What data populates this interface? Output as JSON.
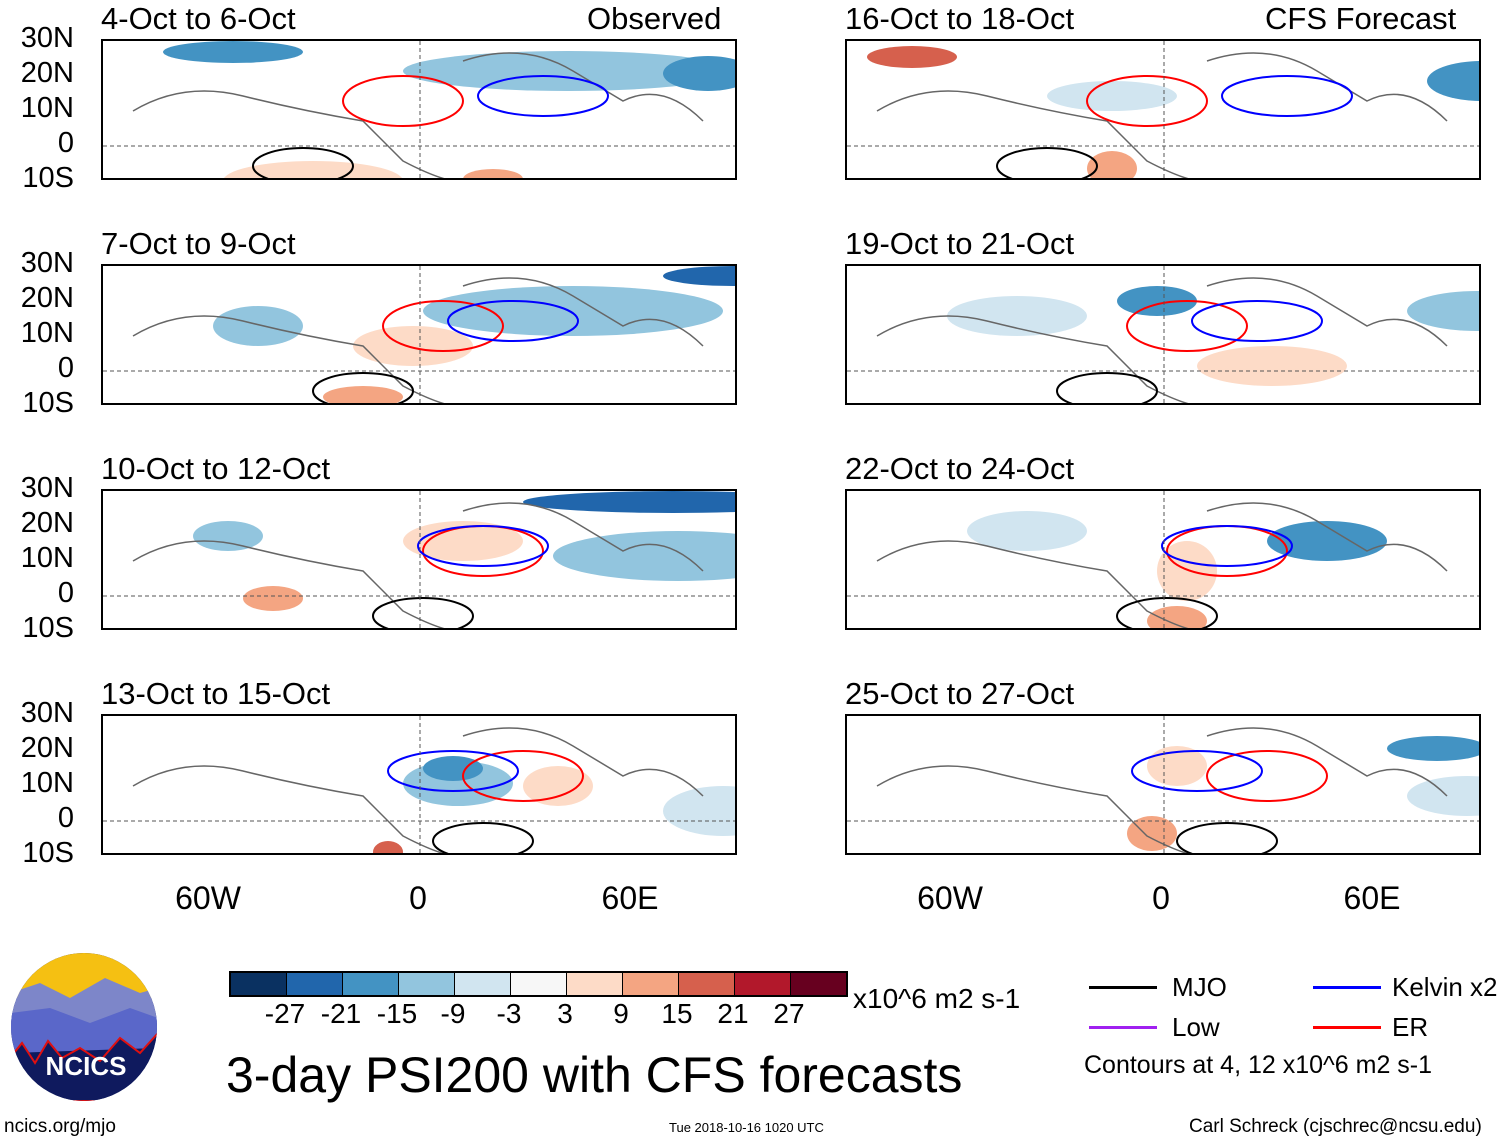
{
  "header": {
    "observed_label": "Observed",
    "forecast_label": "CFS Forecast"
  },
  "panels_left": [
    {
      "title": "4-Oct to 6-Oct"
    },
    {
      "title": "7-Oct to 9-Oct"
    },
    {
      "title": "10-Oct to 12-Oct"
    },
    {
      "title": "13-Oct to 15-Oct"
    }
  ],
  "panels_right": [
    {
      "title": "16-Oct to 18-Oct"
    },
    {
      "title": "19-Oct to 21-Oct"
    },
    {
      "title": "22-Oct to 24-Oct"
    },
    {
      "title": "25-Oct to 27-Oct"
    }
  ],
  "lat_labels": [
    "30N",
    "20N",
    "10N",
    "0",
    "10S"
  ],
  "lon_labels": [
    "60W",
    "0",
    "60E"
  ],
  "colorbar": {
    "colors": [
      "#0a3161",
      "#2166ac",
      "#4393c3",
      "#92c5de",
      "#d1e5f0",
      "#f7f7f7",
      "#fddbc7",
      "#f4a582",
      "#d6604d",
      "#b2182b",
      "#67001f"
    ],
    "labels": [
      "-27",
      "-21",
      "-15",
      "-9",
      "-3",
      "3",
      "9",
      "15",
      "21",
      "27"
    ],
    "units": "x10^6 m2 s-1"
  },
  "legend": {
    "items": [
      {
        "label": "MJO",
        "color": "#000000"
      },
      {
        "label": "Kelvin x2",
        "color": "#0000ff"
      },
      {
        "label": "Low",
        "color": "#a020f0"
      },
      {
        "label": "ER",
        "color": "#ff0000"
      }
    ],
    "note": "Contours at 4, 12 x10^6 m2 s-1"
  },
  "logo": {
    "text": "NCICS"
  },
  "title": "3-day PSI200 with CFS forecasts",
  "footer": {
    "url": "ncics.org/mjo",
    "timestamp": "Tue 2018-10-16 1020 UTC",
    "author": "Carl Schreck (cjschrec@ncsu.edu)"
  }
}
